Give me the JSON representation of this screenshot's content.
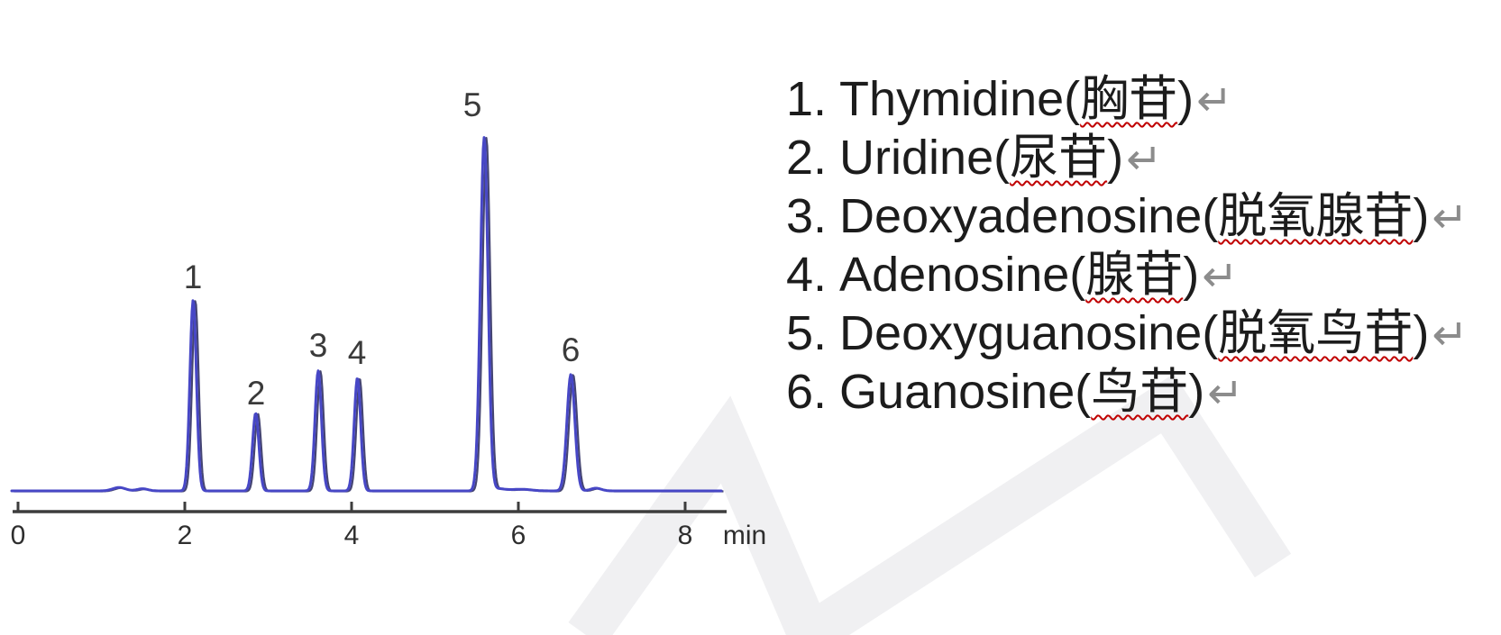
{
  "chart_data": {
    "type": "line",
    "title": "",
    "xlabel": "min",
    "ylabel": "",
    "x_range": [
      0,
      8.5
    ],
    "xticks": [
      0,
      2,
      4,
      6,
      8
    ],
    "y_range_rel": [
      0,
      100
    ],
    "grid": false,
    "legend_position": "right",
    "trace_color": "#4747c6",
    "axis_color": "#3d3d3d",
    "peaks": [
      {
        "label": "1",
        "retention_min": 2.1,
        "rel_height": 54
      },
      {
        "label": "2",
        "retention_min": 2.85,
        "rel_height": 22
      },
      {
        "label": "3",
        "retention_min": 3.6,
        "rel_height": 34
      },
      {
        "label": "4",
        "retention_min": 4.07,
        "rel_height": 32
      },
      {
        "label": "5",
        "retention_min": 5.59,
        "rel_height": 100
      },
      {
        "label": "6",
        "retention_min": 6.63,
        "rel_height": 33
      }
    ]
  },
  "legend": {
    "paren_open": "(",
    "paren_close": ")",
    "return_mark": "↵",
    "return_mark_color": "#8c8c8c",
    "misspell_underline_color": "#c00000",
    "items": [
      {
        "index": "1.",
        "en": "Thymidine",
        "zh": "胸苷"
      },
      {
        "index": "2.",
        "en": "Uridine",
        "zh": "尿苷"
      },
      {
        "index": "3.",
        "en": "Deoxyadenosine",
        "zh": "脱氧腺苷"
      },
      {
        "index": "4.",
        "en": "Adenosine",
        "zh": "腺苷"
      },
      {
        "index": "5.",
        "en": "Deoxyguanosine",
        "zh": "脱氧鸟苷"
      },
      {
        "index": "6.",
        "en": "Guanosine",
        "zh": "鸟苷"
      }
    ]
  }
}
